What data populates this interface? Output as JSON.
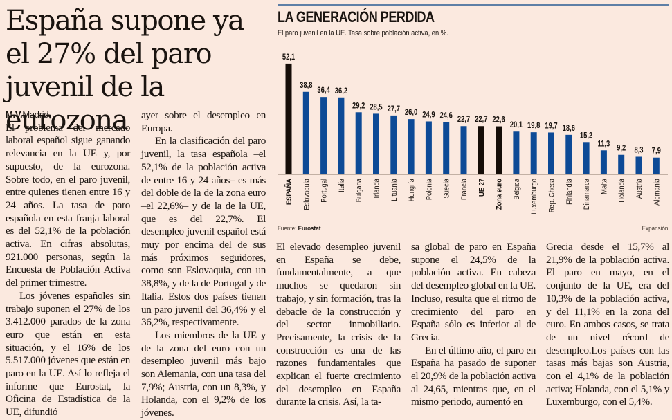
{
  "article": {
    "headline": "España supone ya el 27% del paro juvenil de la eurozona",
    "byline_author": "M.V.",
    "byline_place": "Madrid",
    "columns": [
      [
        {
          "indent": false,
          "text": "El problema del mercado laboral español sigue ganando relevancia en la UE y, por supuesto, de la eurozona. Sobre todo, en el paro juvenil, entre quienes tienen entre 16 y 24 años. La tasa de paro española en esta franja laboral es del 52,1% de la población activa. En cifras absolutas, 921.000 personas, según la Encuesta de Población Activa del primer trimestre."
        },
        {
          "indent": true,
          "text": "Los jóvenes españoles sin trabajo suponen el 27% de los 3.412.000 parados de la zona euro que están en esta situación, y el 16% de los 5.517.000 jóvenes que están en paro en la UE. Así lo refleja el informe que Eurostat, la Oficina de Estadística de la UE, difundió"
        }
      ],
      [
        {
          "indent": false,
          "text": "ayer sobre el desempleo en Europa."
        },
        {
          "indent": true,
          "text": "En la clasificación del paro juvenil, la tasa española –el 52,1% de la población activa de entre 16 y 24 años– es más del doble de la de la zona euro –el 22,6%– y de la de la UE, que es del 22,7%. El desempleo juvenil español está muy por encima del de sus más próximos seguidores, como son Eslovaquia, con un 38,8%, y de la de Portugal y de Italia. Estos dos países tienen un paro juvenil del 36,4% y el 36,2%, respectivamente."
        },
        {
          "indent": true,
          "text": "Los miembros de la UE y de la zona del euro con un desempleo juvenil más bajo son Alemania, con una tasa del 7,9%; Austria, con un 8,3%, y Holanda, con el 9,2% de los jóvenes."
        }
      ],
      [
        {
          "indent": false,
          "text": "El elevado desempleo juvenil en España se debe, fundamentalmente, a que muchos se quedaron sin trabajo, y sin formación, tras la debacle de la construcción y del sector inmobiliario. Precisamente, la crisis de la construcción es una de las razones fundamentales que explican el fuerte crecimiento del desempleo en España durante la crisis. Así, la ta-"
        }
      ],
      [
        {
          "indent": false,
          "text": "sa global de paro en España supone el 24,5% de la población activa. En cabeza del desempleo global en la UE. Incluso, resulta que el ritmo de crecimiento del paro en España sólo es inferior al de Grecia."
        },
        {
          "indent": true,
          "text": "En el último año, el paro en España ha pasado de suponer el 20,9% de la población activa al 24,65, mientras que, en el mismo periodo, aumentó en"
        }
      ],
      [
        {
          "indent": false,
          "text": "Grecia desde el 15,7% al 21,9% de la población activa. El paro en mayo, en el conjunto de la UE, era del 10,3% de la población activa, y del 11,1% en la zona del euro. En ambos casos, se trata de un nivel récord de desempleo.Los países con las tasas más bajas son Austria, con el 4,1% de la población activa; Holanda, con el 5,1% y Luxemburgo, con el 5,4%."
        }
      ]
    ]
  },
  "graphic": {
    "source_label": "Fuente:",
    "source_name": "Eurostat",
    "credit": "Expansión"
  },
  "colors": {
    "highlight": "#150d08",
    "country": "#0d4a96",
    "rule": "#5e7fa6"
  },
  "chart_data": {
    "type": "bar",
    "title": "LA GENERACIÓN PERDIDA",
    "subtitle": "El paro juvenil en la UE. Tasa sobre población activa, en %.",
    "xlabel": "",
    "ylabel": "",
    "ylim": [
      0,
      55
    ],
    "grid": false,
    "legend": "none",
    "categories": [
      "ESPAÑA",
      "Eslovaquia",
      "Portugal",
      "Italia",
      "Bulgaria",
      "Irlanda",
      "Lituania",
      "Hungría",
      "Polonia",
      "Suecia",
      "Francia",
      "UE 27",
      "Zona euro",
      "Bélgica",
      "Luxemburgo",
      "Rep. Checa",
      "Finlandia",
      "Dinamarca",
      "Malta",
      "Holanda",
      "Austria",
      "Alemania"
    ],
    "values": [
      52.1,
      38.8,
      36.4,
      36.2,
      29.2,
      28.5,
      27.7,
      26.0,
      24.9,
      24.6,
      22.7,
      22.7,
      22.6,
      20.1,
      19.8,
      19.7,
      18.6,
      15.2,
      11.3,
      9.2,
      8.3,
      7.9
    ],
    "value_labels": [
      "52,1",
      "38,8",
      "36,4",
      "36,2",
      "29,2",
      "28,5",
      "27,7",
      "26,0",
      "24,9",
      "24,6",
      "22,7",
      "22,7",
      "22,6",
      "20,1",
      "19,8",
      "19,7",
      "18,6",
      "15,2",
      "11,3",
      "9,2",
      "8,3",
      "7,9"
    ],
    "highlighted": [
      "ESPAÑA",
      "UE 27",
      "Zona euro"
    ]
  }
}
